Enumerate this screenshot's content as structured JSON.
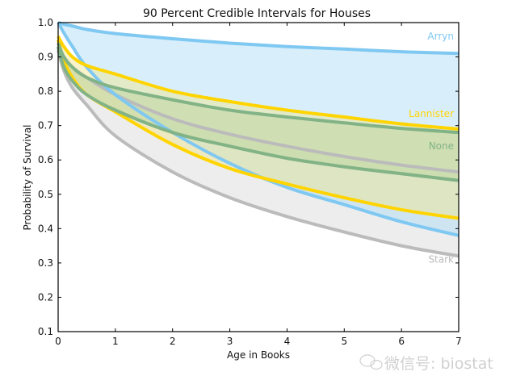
{
  "chart_data": {
    "type": "area",
    "title": "90 Percent Credible Intervals for Houses",
    "xlabel": "Age in Books",
    "ylabel": "Probability of Survival",
    "xlim": [
      0,
      7
    ],
    "ylim": [
      0.1,
      1.0
    ],
    "xticks": [
      "0",
      "1",
      "2",
      "3",
      "4",
      "5",
      "6",
      "7"
    ],
    "yticks": [
      "0.1",
      "0.2",
      "0.3",
      "0.4",
      "0.5",
      "0.6",
      "0.7",
      "0.8",
      "0.9",
      "1.0"
    ],
    "grid": false,
    "x": [
      0,
      0.1,
      0.25,
      0.5,
      1,
      2,
      3,
      4,
      5,
      6,
      7
    ],
    "series": [
      {
        "name": "Stark",
        "color": "#bbbbbb",
        "fill": "#d8d8d8",
        "upper": [
          0.93,
          0.9,
          0.87,
          0.84,
          0.79,
          0.72,
          0.675,
          0.64,
          0.61,
          0.585,
          0.565
        ],
        "lower": [
          0.92,
          0.86,
          0.81,
          0.76,
          0.67,
          0.565,
          0.49,
          0.435,
          0.39,
          0.35,
          0.32
        ]
      },
      {
        "name": "Arryn",
        "color": "#7fc8f2",
        "fill": "#a9dcf7",
        "upper": [
          1.0,
          0.995,
          0.99,
          0.98,
          0.968,
          0.953,
          0.94,
          0.93,
          0.923,
          0.915,
          0.91
        ],
        "lower": [
          1.0,
          0.97,
          0.93,
          0.87,
          0.79,
          0.68,
          0.59,
          0.52,
          0.47,
          0.42,
          0.38
        ]
      },
      {
        "name": "Lannister",
        "color": "#ffd400",
        "fill": "#f2e58a",
        "upper": [
          0.96,
          0.93,
          0.9,
          0.875,
          0.85,
          0.8,
          0.77,
          0.745,
          0.725,
          0.705,
          0.69
        ],
        "lower": [
          0.95,
          0.89,
          0.84,
          0.79,
          0.74,
          0.645,
          0.575,
          0.53,
          0.49,
          0.455,
          0.43
        ]
      },
      {
        "name": "None",
        "color": "#82b386",
        "fill": "#b5d39a",
        "upper": [
          0.94,
          0.9,
          0.87,
          0.84,
          0.81,
          0.775,
          0.745,
          0.725,
          0.708,
          0.692,
          0.68
        ],
        "lower": [
          0.93,
          0.87,
          0.83,
          0.79,
          0.745,
          0.68,
          0.64,
          0.605,
          0.58,
          0.56,
          0.54
        ]
      }
    ]
  },
  "watermark": "微信号: biostat"
}
